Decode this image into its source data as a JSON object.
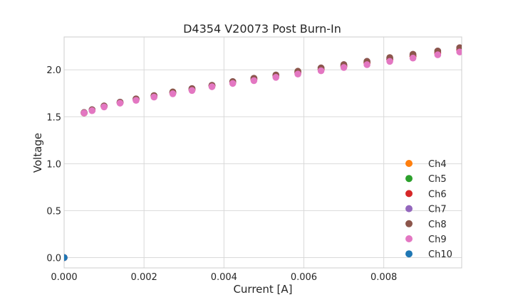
{
  "chart_data": {
    "type": "scatter",
    "title": "D4354 V20073 Post Burn-In",
    "xlabel": "Current [A]",
    "ylabel": "Voltage",
    "xlim": [
      0,
      0.00995
    ],
    "ylim": [
      -0.11,
      2.35
    ],
    "xticks": [
      0,
      0.002,
      0.004,
      0.006,
      0.008
    ],
    "xtick_labels": [
      "0.000",
      "0.002",
      "0.004",
      "0.006",
      "0.008"
    ],
    "yticks": [
      0,
      0.5,
      1.0,
      1.5,
      2.0
    ],
    "ytick_labels": [
      "0.0",
      "0.5",
      "1.0",
      "1.5",
      "2.0"
    ],
    "grid": true,
    "legend_position": "bottom-right",
    "x": [
      0.0,
      0.0005,
      0.0007,
      0.001,
      0.0014,
      0.0018,
      0.00225,
      0.00272,
      0.0032,
      0.0037,
      0.00422,
      0.00475,
      0.0053,
      0.00585,
      0.00643,
      0.007,
      0.00758,
      0.00815,
      0.00873,
      0.00935,
      0.0099
    ],
    "series": [
      {
        "name": "Ch4",
        "color": "#ff7f0e",
        "values": [
          0.0,
          1.54,
          1.57,
          1.61,
          1.65,
          1.685,
          1.72,
          1.755,
          1.79,
          1.83,
          1.87,
          1.9,
          1.935,
          1.97,
          2.005,
          2.04,
          2.075,
          2.11,
          2.145,
          2.18,
          2.215
        ]
      },
      {
        "name": "Ch5",
        "color": "#2ca02c",
        "values": [
          0.0,
          1.54,
          1.57,
          1.61,
          1.65,
          1.685,
          1.72,
          1.755,
          1.79,
          1.83,
          1.87,
          1.9,
          1.935,
          1.97,
          2.005,
          2.04,
          2.075,
          2.11,
          2.145,
          2.18,
          2.215
        ]
      },
      {
        "name": "Ch6",
        "color": "#d62728",
        "values": [
          0.0,
          1.54,
          1.57,
          1.61,
          1.65,
          1.685,
          1.72,
          1.755,
          1.79,
          1.83,
          1.87,
          1.9,
          1.935,
          1.97,
          2.005,
          2.04,
          2.075,
          2.11,
          2.145,
          2.18,
          2.215
        ]
      },
      {
        "name": "Ch7",
        "color": "#9467bd",
        "values": [
          0.0,
          1.545,
          1.575,
          1.615,
          1.655,
          1.69,
          1.725,
          1.76,
          1.8,
          1.835,
          1.875,
          1.91,
          1.945,
          1.98,
          2.02,
          2.055,
          2.09,
          2.125,
          2.165,
          2.2,
          2.235
        ]
      },
      {
        "name": "Ch8",
        "color": "#8c564b",
        "values": [
          0.0,
          1.545,
          1.575,
          1.615,
          1.655,
          1.69,
          1.725,
          1.765,
          1.8,
          1.835,
          1.875,
          1.91,
          1.945,
          1.985,
          2.02,
          2.055,
          2.09,
          2.13,
          2.165,
          2.2,
          2.235
        ]
      },
      {
        "name": "Ch9",
        "color": "#e377c2",
        "values": [
          0.0,
          1.54,
          1.565,
          1.605,
          1.645,
          1.675,
          1.71,
          1.745,
          1.78,
          1.82,
          1.855,
          1.885,
          1.92,
          1.955,
          1.99,
          2.025,
          2.055,
          2.09,
          2.125,
          2.16,
          2.19
        ]
      },
      {
        "name": "Ch10",
        "color": "#1f77b4",
        "values": [
          0.0
        ]
      }
    ]
  }
}
